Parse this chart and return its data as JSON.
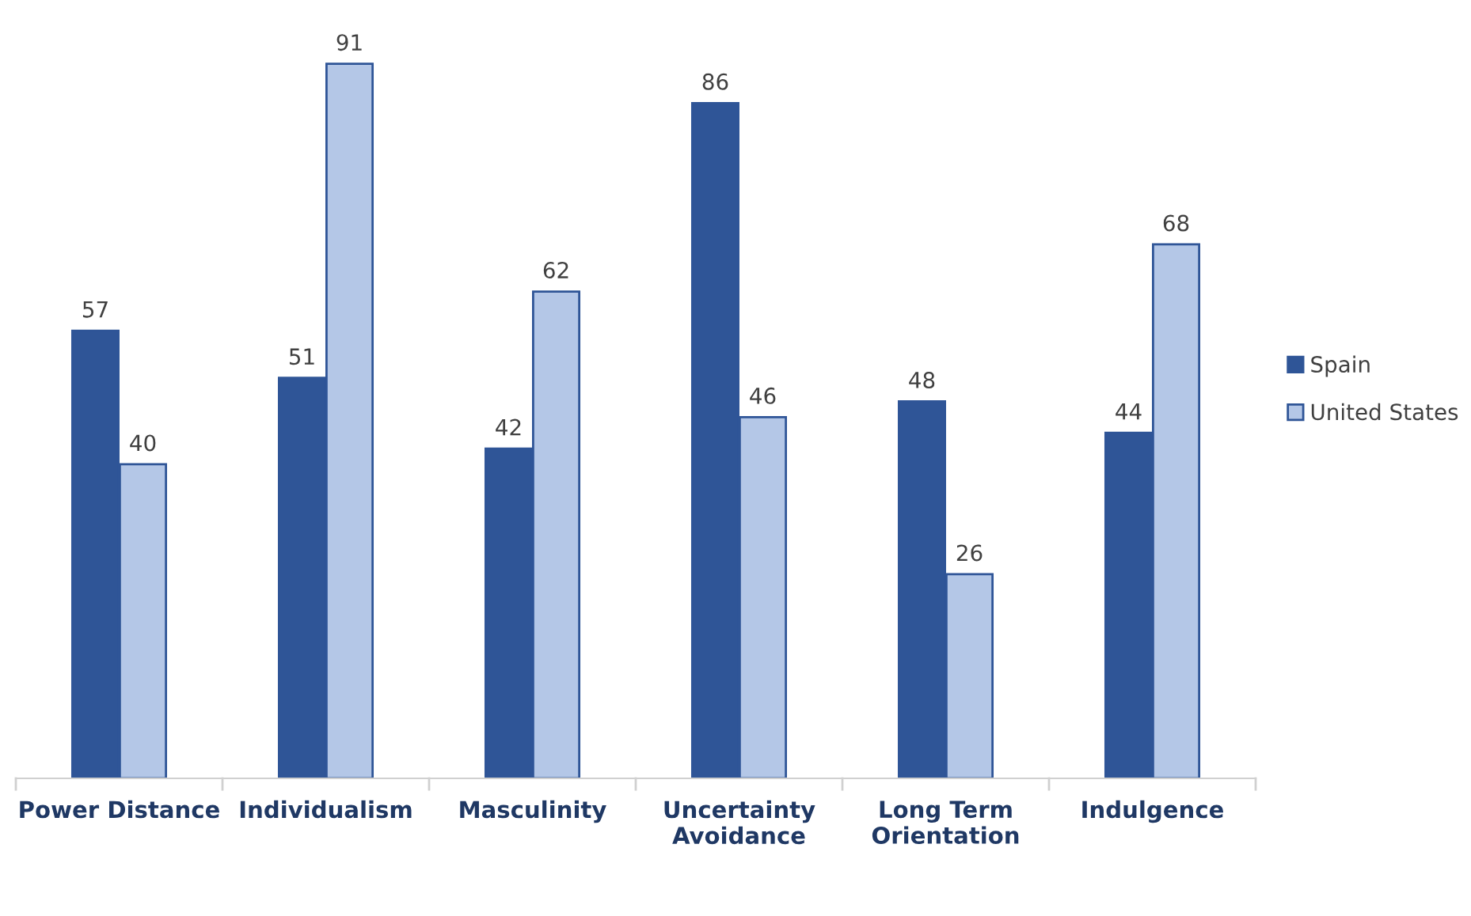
{
  "chart_data": {
    "type": "bar",
    "categories": [
      "Power Distance",
      "Individualism",
      "Masculinity",
      "Uncertainty\nAvoidance",
      "Long Term\nOrientation",
      "Indulgence"
    ],
    "series": [
      {
        "name": "Spain",
        "color": "#2f5597",
        "values": [
          57,
          51,
          42,
          86,
          48,
          44
        ]
      },
      {
        "name": "United States",
        "color": "#b4c7e7",
        "values": [
          40,
          91,
          62,
          46,
          26,
          68
        ]
      }
    ],
    "data_labels": true,
    "legend": "right",
    "grid": false
  }
}
